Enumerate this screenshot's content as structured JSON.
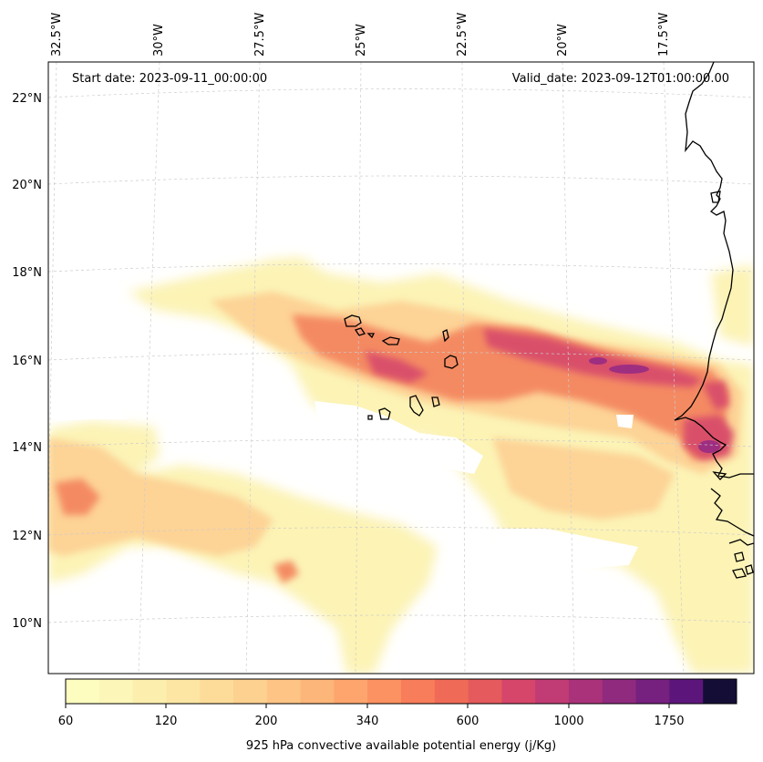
{
  "map": {
    "start_date_text": "Start date: 2023-09-11_00:00:00",
    "valid_date_text": "Valid_date: 2023-09-12T01:00:00.00",
    "lon_labels": [
      "32.5°W",
      "30°W",
      "27.5°W",
      "25°W",
      "22.5°W",
      "20°W",
      "17.5°W"
    ],
    "lat_labels": [
      "22°N",
      "20°N",
      "18°N",
      "16°N",
      "14°N",
      "12°N",
      "10°N"
    ]
  },
  "colorbar": {
    "tick_labels": [
      "60",
      "120",
      "200",
      "340",
      "600",
      "1000",
      "1750"
    ],
    "label": "925 hPa convective available potential energy (j/Kg)",
    "colors": [
      "#fcfdbf",
      "#fcf6b8",
      "#fcefae",
      "#fde6a4",
      "#fddc9a",
      "#fdd190",
      "#fdc485",
      "#fdb679",
      "#fda56d",
      "#fc9161",
      "#f87d5a",
      "#f06b57",
      "#e55a5c",
      "#d6466a",
      "#c13b74",
      "#a9327a",
      "#8f2a7e",
      "#76207f",
      "#5c167b",
      "#140e36"
    ]
  },
  "colors": {
    "low": "#fcf3b5",
    "mid": "#fdd396",
    "high": "#f48a62",
    "peak": "#d9506a",
    "max": "#9e2e80",
    "coast": "#000000",
    "grid": "#cccccc"
  }
}
